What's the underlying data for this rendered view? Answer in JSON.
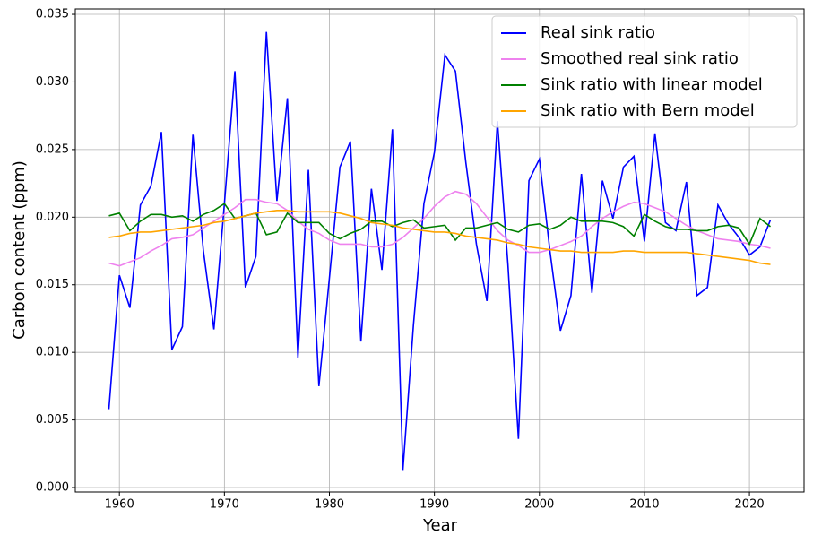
{
  "chart_data": {
    "type": "line",
    "xlabel": "Year",
    "ylabel": "Carbon content (ppm)",
    "x": [
      1959,
      1960,
      1961,
      1962,
      1963,
      1964,
      1965,
      1966,
      1967,
      1968,
      1969,
      1970,
      1971,
      1972,
      1973,
      1974,
      1975,
      1976,
      1977,
      1978,
      1979,
      1980,
      1981,
      1982,
      1983,
      1984,
      1985,
      1986,
      1987,
      1988,
      1989,
      1990,
      1991,
      1992,
      1993,
      1994,
      1995,
      1996,
      1997,
      1998,
      1999,
      2000,
      2001,
      2002,
      2003,
      2004,
      2005,
      2006,
      2007,
      2008,
      2009,
      2010,
      2011,
      2012,
      2013,
      2014,
      2015,
      2016,
      2017,
      2018,
      2019,
      2020,
      2021,
      2022
    ],
    "series": [
      {
        "name": "Real sink ratio",
        "color": "#0000ff",
        "values": [
          0.0058,
          0.0157,
          0.0133,
          0.0209,
          0.0223,
          0.0263,
          0.0102,
          0.0119,
          0.0261,
          0.0175,
          0.0117,
          0.021,
          0.0308,
          0.0148,
          0.0171,
          0.0337,
          0.0212,
          0.0288,
          0.0096,
          0.0235,
          0.0075,
          0.0155,
          0.0237,
          0.0256,
          0.0108,
          0.0221,
          0.0161,
          0.0265,
          0.0013,
          0.012,
          0.021,
          0.0248,
          0.032,
          0.0308,
          0.024,
          0.018,
          0.0138,
          0.0271,
          0.0165,
          0.0036,
          0.0227,
          0.0243,
          0.0175,
          0.0116,
          0.0142,
          0.0232,
          0.0144,
          0.0227,
          0.0199,
          0.0237,
          0.0245,
          0.0182,
          0.0262,
          0.0196,
          0.019,
          0.0226,
          0.0142,
          0.0148,
          0.0209,
          0.0195,
          0.0185,
          0.0172,
          0.0178,
          0.0198
        ]
      },
      {
        "name": "Smoothed real sink ratio",
        "color": "#ee82ee",
        "values": [
          0.0166,
          0.0164,
          0.0167,
          0.017,
          0.0175,
          0.0179,
          0.0184,
          0.0185,
          0.0187,
          0.0192,
          0.0197,
          0.0202,
          0.0207,
          0.0213,
          0.0213,
          0.0211,
          0.021,
          0.0205,
          0.0197,
          0.0191,
          0.0188,
          0.0183,
          0.018,
          0.018,
          0.018,
          0.0178,
          0.0178,
          0.018,
          0.0185,
          0.0192,
          0.0199,
          0.0208,
          0.0215,
          0.0219,
          0.0217,
          0.021,
          0.02,
          0.019,
          0.0183,
          0.0179,
          0.0174,
          0.0174,
          0.0176,
          0.0179,
          0.0182,
          0.0186,
          0.0193,
          0.0199,
          0.0204,
          0.0208,
          0.0211,
          0.021,
          0.0207,
          0.0204,
          0.0199,
          0.0194,
          0.019,
          0.0187,
          0.0184,
          0.0183,
          0.0182,
          0.018,
          0.0179,
          0.0177
        ]
      },
      {
        "name": "Sink ratio with linear model",
        "color": "#008000",
        "values": [
          0.0201,
          0.0203,
          0.019,
          0.0197,
          0.0202,
          0.0202,
          0.02,
          0.0201,
          0.0197,
          0.0202,
          0.0205,
          0.021,
          0.0199,
          0.0201,
          0.0203,
          0.0187,
          0.0189,
          0.0203,
          0.0196,
          0.0196,
          0.0196,
          0.0188,
          0.0184,
          0.0188,
          0.0191,
          0.0197,
          0.0197,
          0.0193,
          0.0196,
          0.0198,
          0.0192,
          0.0193,
          0.0194,
          0.0183,
          0.0192,
          0.0192,
          0.0194,
          0.0196,
          0.0191,
          0.0189,
          0.0194,
          0.0195,
          0.0191,
          0.0194,
          0.02,
          0.0197,
          0.0197,
          0.0197,
          0.0196,
          0.0193,
          0.0186,
          0.0202,
          0.0197,
          0.0193,
          0.0191,
          0.0191,
          0.019,
          0.019,
          0.0193,
          0.0194,
          0.0192,
          0.018,
          0.0199,
          0.0193
        ]
      },
      {
        "name": "Sink ratio with Bern model",
        "color": "#ffa500",
        "values": [
          0.0185,
          0.0186,
          0.0188,
          0.0189,
          0.0189,
          0.019,
          0.0191,
          0.0192,
          0.0193,
          0.0194,
          0.0196,
          0.0197,
          0.0199,
          0.0201,
          0.0203,
          0.0204,
          0.0205,
          0.0205,
          0.0204,
          0.0204,
          0.0204,
          0.0204,
          0.0203,
          0.0201,
          0.0199,
          0.0196,
          0.0195,
          0.0194,
          0.0192,
          0.0191,
          0.019,
          0.0189,
          0.0189,
          0.0188,
          0.0186,
          0.0185,
          0.0184,
          0.0183,
          0.0181,
          0.018,
          0.0178,
          0.0177,
          0.0176,
          0.0175,
          0.0175,
          0.0174,
          0.0174,
          0.0174,
          0.0174,
          0.0175,
          0.0175,
          0.0174,
          0.0174,
          0.0174,
          0.0174,
          0.0174,
          0.0173,
          0.0172,
          0.0171,
          0.017,
          0.0169,
          0.0168,
          0.0166,
          0.0165
        ]
      }
    ],
    "xlim": [
      1955.8,
      2025.2
    ],
    "xticks": [
      1960,
      1970,
      1980,
      1990,
      2000,
      2010,
      2020
    ],
    "ylim": [
      -0.00033,
      0.0354
    ],
    "yticks": [
      {
        "value": 0,
        "label": "0.000"
      },
      {
        "value": 0.005,
        "label": "0.005"
      },
      {
        "value": 0.01,
        "label": "0.010"
      },
      {
        "value": 0.015,
        "label": "0.015"
      },
      {
        "value": 0.02,
        "label": "0.020"
      },
      {
        "value": 0.025,
        "label": "0.025"
      },
      {
        "value": 0.03,
        "label": "0.030"
      },
      {
        "value": 0.035,
        "label": "0.035"
      }
    ],
    "grid": true,
    "legend": "upper-right"
  }
}
